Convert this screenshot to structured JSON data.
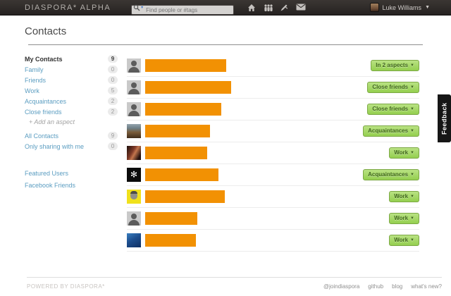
{
  "header": {
    "logo": "DIASPORA* ALPHA",
    "search_placeholder": "Find people or #tags",
    "user_name": "Luke Williams",
    "user_menu_caret": "▼"
  },
  "page": {
    "title": "Contacts"
  },
  "sidebar": {
    "items": [
      {
        "label": "My Contacts",
        "count": "9",
        "style": "header",
        "gap": false
      },
      {
        "label": "Family",
        "count": "0",
        "style": "link",
        "gap": false
      },
      {
        "label": "Friends",
        "count": "0",
        "style": "link",
        "gap": false
      },
      {
        "label": "Work",
        "count": "5",
        "style": "link",
        "gap": false
      },
      {
        "label": "Acquaintances",
        "count": "2",
        "style": "link",
        "gap": false
      },
      {
        "label": "Close friends",
        "count": "2",
        "style": "link",
        "gap": false
      },
      {
        "label": "+ Add an aspect",
        "count": "",
        "style": "add",
        "gap": false
      },
      {
        "label": "All Contacts",
        "count": "9",
        "style": "link",
        "gap": true
      },
      {
        "label": "Only sharing with me",
        "count": "0",
        "style": "link",
        "gap": false
      }
    ],
    "featured_users": "Featured Users",
    "facebook_friends": "Facebook Friends"
  },
  "contacts": {
    "dropdown_caret": "▼",
    "rows": [
      {
        "avatar": "silhouette",
        "name_bar_width": 115,
        "aspect_label": "In 2 aspects"
      },
      {
        "avatar": "silhouette",
        "name_bar_width": 122,
        "aspect_label": "Close friends"
      },
      {
        "avatar": "silhouette",
        "name_bar_width": 108,
        "aspect_label": "Close friends"
      },
      {
        "avatar": "photo-desk",
        "name_bar_width": 92,
        "aspect_label": "Acquaintances"
      },
      {
        "avatar": "photo-portrait",
        "name_bar_width": 88,
        "aspect_label": "Work"
      },
      {
        "avatar": "logo-star",
        "name_bar_width": 104,
        "aspect_label": "Acquaintances"
      },
      {
        "avatar": "photo-face",
        "name_bar_width": 113,
        "aspect_label": "Work"
      },
      {
        "avatar": "silhouette",
        "name_bar_width": 74,
        "aspect_label": "Work"
      },
      {
        "avatar": "photo-underwater",
        "name_bar_width": 72,
        "aspect_label": "Work"
      }
    ]
  },
  "feedback_label": "Feedback",
  "footer": {
    "powered": "POWERED BY DIASPORA*",
    "links": [
      "@joindiaspora",
      "github",
      "blog",
      "what's new?"
    ]
  },
  "colors": {
    "accent_orange": "#f29103",
    "aspect_button_green": "#94cf4f",
    "link_blue": "#5b9dc1",
    "topbar_dark": "#2b2725"
  }
}
